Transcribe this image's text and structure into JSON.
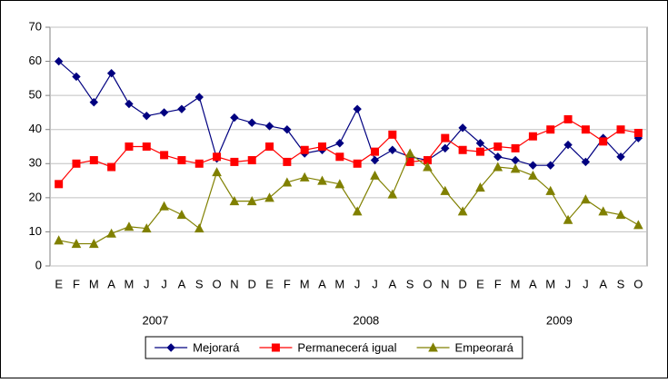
{
  "chart_data": {
    "type": "line",
    "categories": [
      "E",
      "F",
      "M",
      "A",
      "M",
      "J",
      "J",
      "A",
      "S",
      "O",
      "N",
      "D",
      "E",
      "F",
      "M",
      "A",
      "M",
      "J",
      "J",
      "A",
      "S",
      "O",
      "N",
      "D",
      "E",
      "F",
      "M",
      "A",
      "M",
      "J",
      "J",
      "A",
      "S",
      "O"
    ],
    "year_labels": [
      "2007",
      "2008",
      "2009"
    ],
    "series": [
      {
        "name": "Mejorará",
        "color": "#000080",
        "marker": "diamond",
        "values": [
          60,
          55.5,
          48,
          56.5,
          47.5,
          44,
          45,
          46,
          49.5,
          31.5,
          43.5,
          42,
          41,
          40,
          33,
          34,
          36,
          46,
          31,
          34,
          32,
          31,
          34.5,
          40.5,
          36,
          32,
          31,
          29.5,
          29.5,
          35.5,
          30.5,
          37.5,
          32,
          37.5
        ]
      },
      {
        "name": "Permanecerá igual",
        "color": "#ff0000",
        "marker": "square",
        "values": [
          24,
          30,
          31,
          29,
          35,
          35,
          32.5,
          31,
          30,
          32,
          30.5,
          31,
          35,
          30.5,
          34,
          35,
          32,
          30,
          33.5,
          38.5,
          30.5,
          31,
          37.5,
          34,
          33.5,
          35,
          34.5,
          38,
          40,
          43,
          40,
          36.5,
          40,
          39
        ]
      },
      {
        "name": "Empeorará",
        "color": "#808000",
        "marker": "triangle",
        "values": [
          7.5,
          6.5,
          6.5,
          9.5,
          11.5,
          11,
          17.5,
          15,
          11,
          27.5,
          19,
          19,
          20,
          24.5,
          26,
          25,
          24,
          16,
          26.5,
          21,
          33,
          29,
          22,
          16,
          23,
          29,
          28.5,
          26.5,
          22,
          13.5,
          19.5,
          16,
          15,
          12
        ]
      }
    ],
    "ylim": [
      0,
      70
    ],
    "yticks": [
      0,
      10,
      20,
      30,
      40,
      50,
      60,
      70
    ],
    "grid": true,
    "legend": "bottom"
  }
}
